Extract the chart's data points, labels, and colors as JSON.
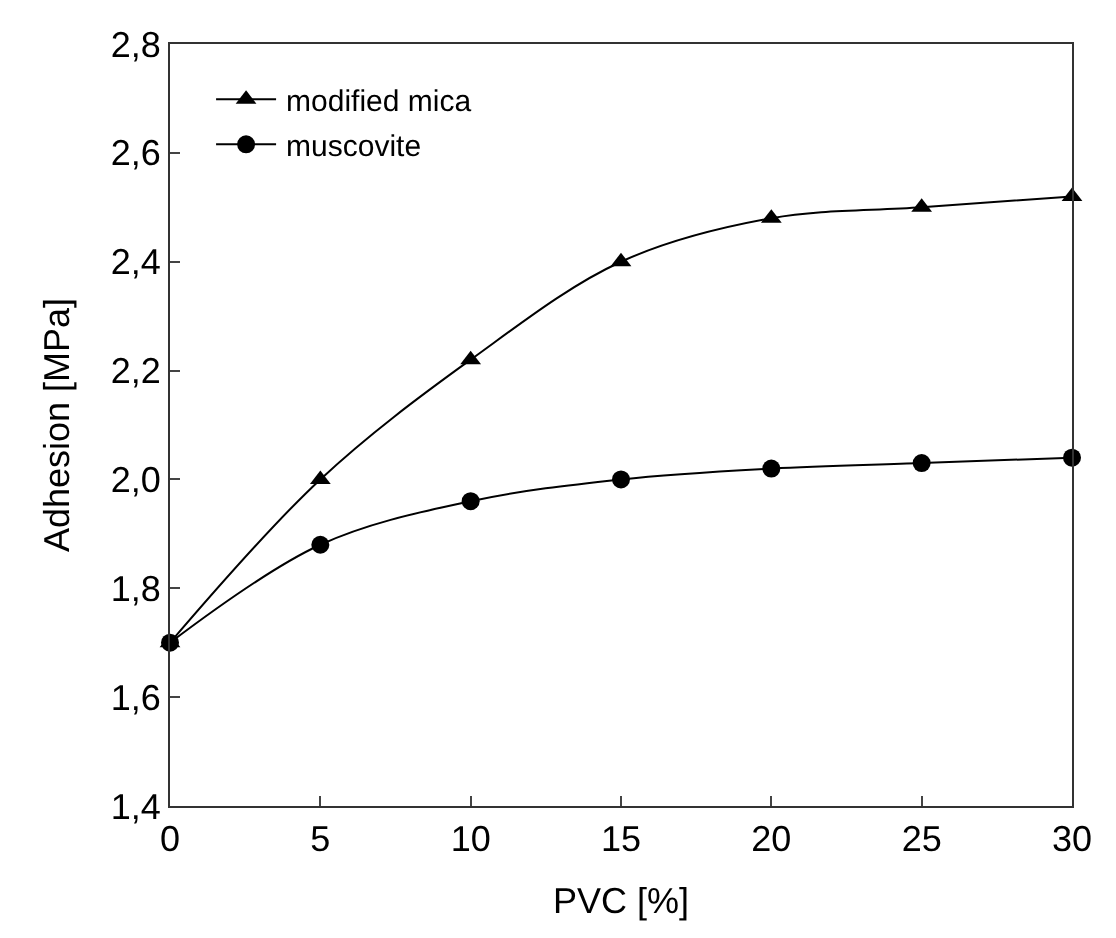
{
  "chart_data": {
    "type": "line",
    "xlabel": "PVC [%]",
    "ylabel": "Adhesion [MPa]",
    "x": [
      0,
      5,
      10,
      15,
      20,
      25,
      30
    ],
    "series": [
      {
        "name": "modified mica",
        "color": "#000000",
        "marker": "triangle",
        "values": [
          1.7,
          2.0,
          2.22,
          2.4,
          2.48,
          2.5,
          2.52
        ]
      },
      {
        "name": "muscovite",
        "color": "#000000",
        "marker": "circle",
        "values": [
          1.7,
          1.88,
          1.96,
          2.0,
          2.02,
          2.03,
          2.04
        ]
      }
    ],
    "xlim": [
      0,
      30
    ],
    "xticks": [
      0,
      5,
      10,
      15,
      20,
      25,
      30
    ],
    "ylim": [
      1.4,
      2.8
    ],
    "yticks": [
      {
        "value": 1.4,
        "label": "1,4"
      },
      {
        "value": 1.6,
        "label": "1,6"
      },
      {
        "value": 1.8,
        "label": "1,8"
      },
      {
        "value": 2.0,
        "label": "2,0"
      },
      {
        "value": 2.2,
        "label": "2,2"
      },
      {
        "value": 2.4,
        "label": "2,4"
      },
      {
        "value": 2.6,
        "label": "2,6"
      },
      {
        "value": 2.8,
        "label": "2,8"
      }
    ],
    "legend": "top left",
    "line_style": "solid"
  }
}
